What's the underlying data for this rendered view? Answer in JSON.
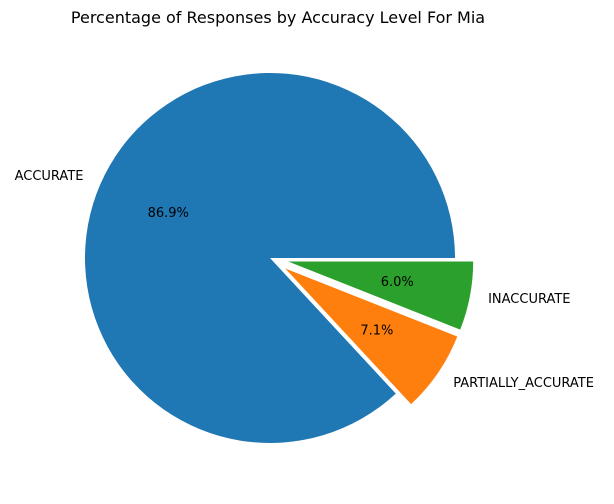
{
  "chart_data": {
    "type": "pie",
    "title": "Percentage of Responses by Accuracy Level For Mia",
    "start_angle_deg": 0,
    "direction": "counterclockwise",
    "slices": [
      {
        "label": "ACCURATE",
        "value": 86.9,
        "pct_label": "86.9%",
        "color": "#1f77b4",
        "explode": 0
      },
      {
        "label": "PARTIALLY_ACCURATE",
        "value": 7.1,
        "pct_label": "7.1%",
        "color": "#ff7f0e",
        "explode": 0.1
      },
      {
        "label": "INACCURATE",
        "value": 6.0,
        "pct_label": "6.0%",
        "color": "#2ca02c",
        "explode": 0.1
      }
    ]
  }
}
